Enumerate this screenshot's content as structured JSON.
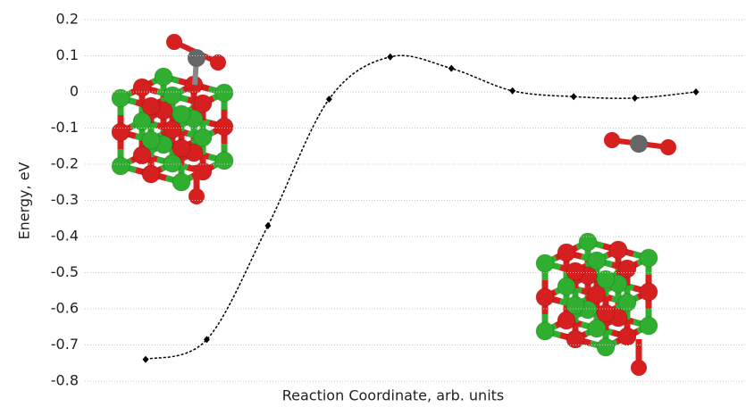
{
  "chart_data": {
    "type": "line",
    "y_label": "Energy, eV",
    "x_label": "Reaction Coordinate, arb. units",
    "series": [
      {
        "color": "#000000",
        "values": [
          -0.74,
          -0.685,
          -0.37,
          -0.02,
          0.097,
          0.065,
          0.003,
          -0.013,
          -0.017,
          0.0
        ]
      }
    ],
    "ylim": [
      -0.8,
      0.2
    ],
    "yticks": [
      0.2,
      0.1,
      0,
      -0.1,
      -0.2,
      -0.3,
      -0.4,
      -0.5,
      -0.6,
      -0.7,
      -0.8
    ],
    "grid": true
  }
}
